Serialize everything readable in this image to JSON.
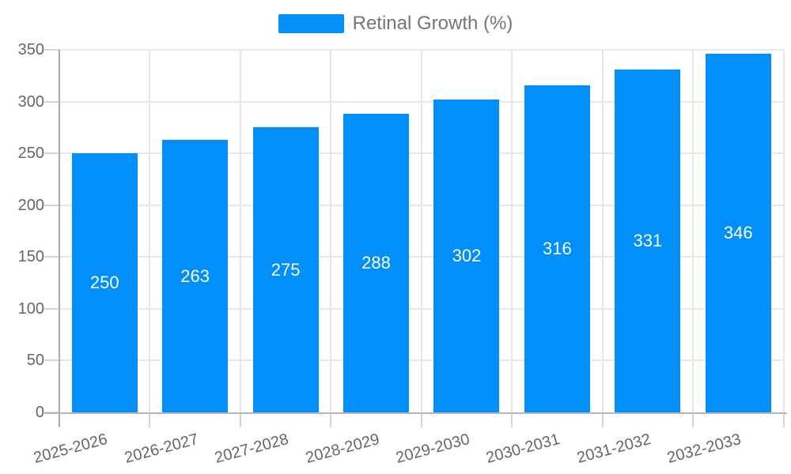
{
  "chart_data": {
    "type": "bar",
    "title": "",
    "legend": {
      "position": "top",
      "items": [
        {
          "label": "Retinal Growth (%)",
          "color": "#008FFB"
        }
      ]
    },
    "categories": [
      "2025-2026",
      "2026-2027",
      "2027-2028",
      "2028-2029",
      "2029-2030",
      "2030-2031",
      "2031-2032",
      "2032-2033"
    ],
    "series": [
      {
        "name": "Retinal Growth (%)",
        "values": [
          250,
          263,
          275,
          288,
          302,
          316,
          331,
          346
        ]
      }
    ],
    "data_labels": {
      "show": true,
      "position": "center",
      "color": "#FFFFFF",
      "values": [
        "250",
        "263",
        "275",
        "288",
        "302",
        "316",
        "331",
        "346"
      ]
    },
    "xlabel": "",
    "ylabel": "",
    "ylim": [
      0,
      350
    ],
    "yticks": [
      "0",
      "50",
      "100",
      "150",
      "200",
      "250",
      "300",
      "350"
    ],
    "grid": true,
    "bar_color": "#008FFB",
    "axis_label_color": "#666666",
    "legend_text_color": "#757575"
  }
}
